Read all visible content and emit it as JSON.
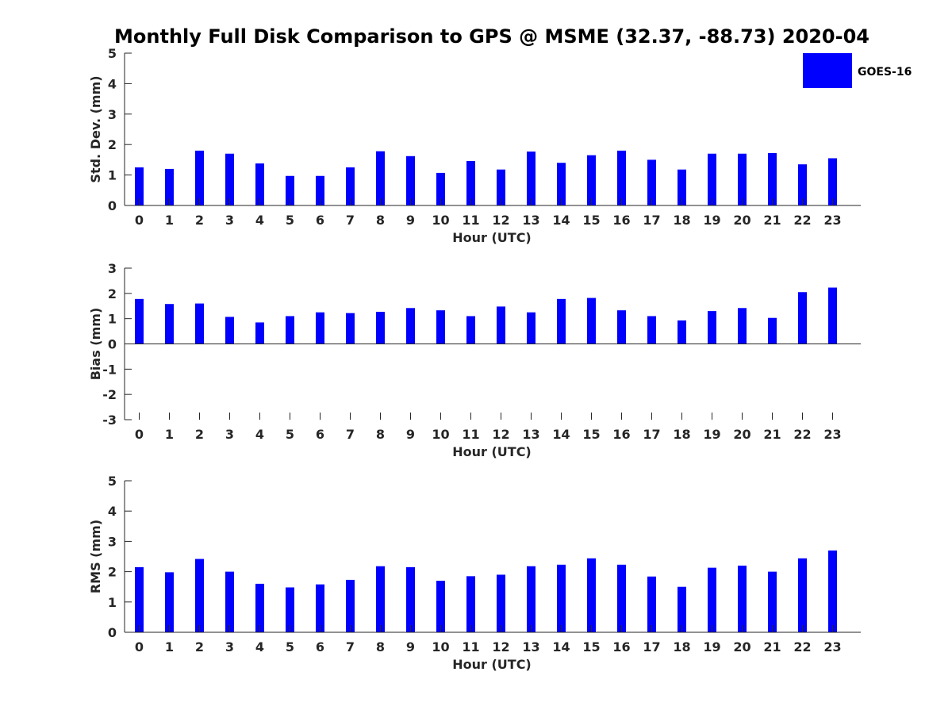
{
  "figure_title": "Monthly Full Disk Comparison to GPS @ MSME (32.37, -88.73) 2020-04",
  "legend": {
    "label": "GOES-16",
    "color": "#0000ff",
    "placement": "top-right"
  },
  "chart_data": [
    {
      "type": "bar",
      "name": "std-dev",
      "xlabel": "Hour (UTC)",
      "ylabel": "Std. Dev. (mm)",
      "ylim": [
        0,
        5
      ],
      "yticks": [
        0,
        1,
        2,
        3,
        4,
        5
      ],
      "categories": [
        "0",
        "1",
        "2",
        "3",
        "4",
        "5",
        "6",
        "7",
        "8",
        "9",
        "10",
        "11",
        "12",
        "13",
        "14",
        "15",
        "16",
        "17",
        "18",
        "19",
        "20",
        "21",
        "22",
        "23"
      ],
      "series": [
        {
          "name": "GOES-16",
          "color": "#0000ff",
          "values": [
            1.25,
            1.2,
            1.8,
            1.7,
            1.38,
            0.97,
            0.97,
            1.25,
            1.78,
            1.62,
            1.07,
            1.46,
            1.18,
            1.77,
            1.4,
            1.65,
            1.8,
            1.5,
            1.18,
            1.7,
            1.7,
            1.72,
            1.35,
            1.55
          ]
        }
      ]
    },
    {
      "type": "bar",
      "name": "bias",
      "xlabel": "Hour (UTC)",
      "ylabel": "Bias (mm)",
      "ylim": [
        -3,
        3
      ],
      "yticks": [
        -3,
        -2,
        -1,
        0,
        1,
        2,
        3
      ],
      "categories": [
        "0",
        "1",
        "2",
        "3",
        "4",
        "5",
        "6",
        "7",
        "8",
        "9",
        "10",
        "11",
        "12",
        "13",
        "14",
        "15",
        "16",
        "17",
        "18",
        "19",
        "20",
        "21",
        "22",
        "23"
      ],
      "series": [
        {
          "name": "GOES-16",
          "color": "#0000ff",
          "values": [
            1.78,
            1.58,
            1.6,
            1.07,
            0.85,
            1.1,
            1.25,
            1.22,
            1.27,
            1.42,
            1.33,
            1.1,
            1.48,
            1.25,
            1.78,
            1.82,
            1.33,
            1.1,
            0.93,
            1.3,
            1.42,
            1.03,
            2.05,
            2.23
          ]
        }
      ]
    },
    {
      "type": "bar",
      "name": "rms",
      "xlabel": "Hour (UTC)",
      "ylabel": "RMS (mm)",
      "ylim": [
        0,
        5
      ],
      "yticks": [
        0,
        1,
        2,
        3,
        4,
        5
      ],
      "categories": [
        "0",
        "1",
        "2",
        "3",
        "4",
        "5",
        "6",
        "7",
        "8",
        "9",
        "10",
        "11",
        "12",
        "13",
        "14",
        "15",
        "16",
        "17",
        "18",
        "19",
        "20",
        "21",
        "22",
        "23"
      ],
      "series": [
        {
          "name": "GOES-16",
          "color": "#0000ff",
          "values": [
            2.15,
            1.98,
            2.42,
            2.0,
            1.6,
            1.48,
            1.58,
            1.73,
            2.18,
            2.15,
            1.7,
            1.85,
            1.9,
            2.18,
            2.23,
            2.44,
            2.23,
            1.84,
            1.5,
            2.13,
            2.2,
            2.0,
            2.44,
            2.7
          ]
        }
      ]
    }
  ]
}
